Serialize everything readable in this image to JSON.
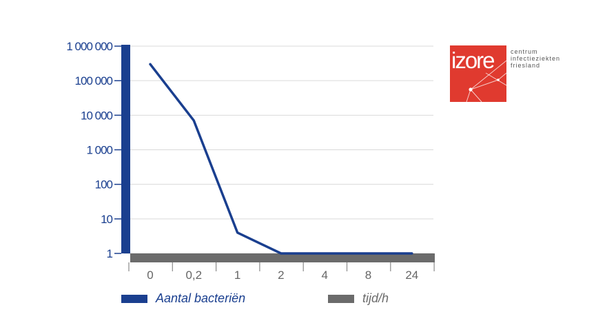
{
  "chart_data": {
    "type": "line",
    "yscale": "log",
    "ylim": [
      1,
      1000000
    ],
    "yticks": [
      "1 000 000",
      "100 000",
      "10 000",
      "1 000",
      "100",
      "10",
      "1"
    ],
    "ytick_values": [
      1000000,
      100000,
      10000,
      1000,
      100,
      10,
      1
    ],
    "categories": [
      "0",
      "0,2",
      "1",
      "2",
      "4",
      "8",
      "24"
    ],
    "grid": true,
    "legend_position": "bottom",
    "series": [
      {
        "name": "Aantal bacteriën",
        "color": "#1a3f8f",
        "values": [
          300000,
          7000,
          4,
          1,
          1,
          1,
          1
        ]
      }
    ],
    "x_axis_legend": {
      "name": "tijd/h",
      "color": "#6b6b6b"
    }
  },
  "logo": {
    "mark": "izore",
    "color": "#e03a2f",
    "lines": [
      "centrum",
      "infectieziekten",
      "friesland"
    ]
  }
}
